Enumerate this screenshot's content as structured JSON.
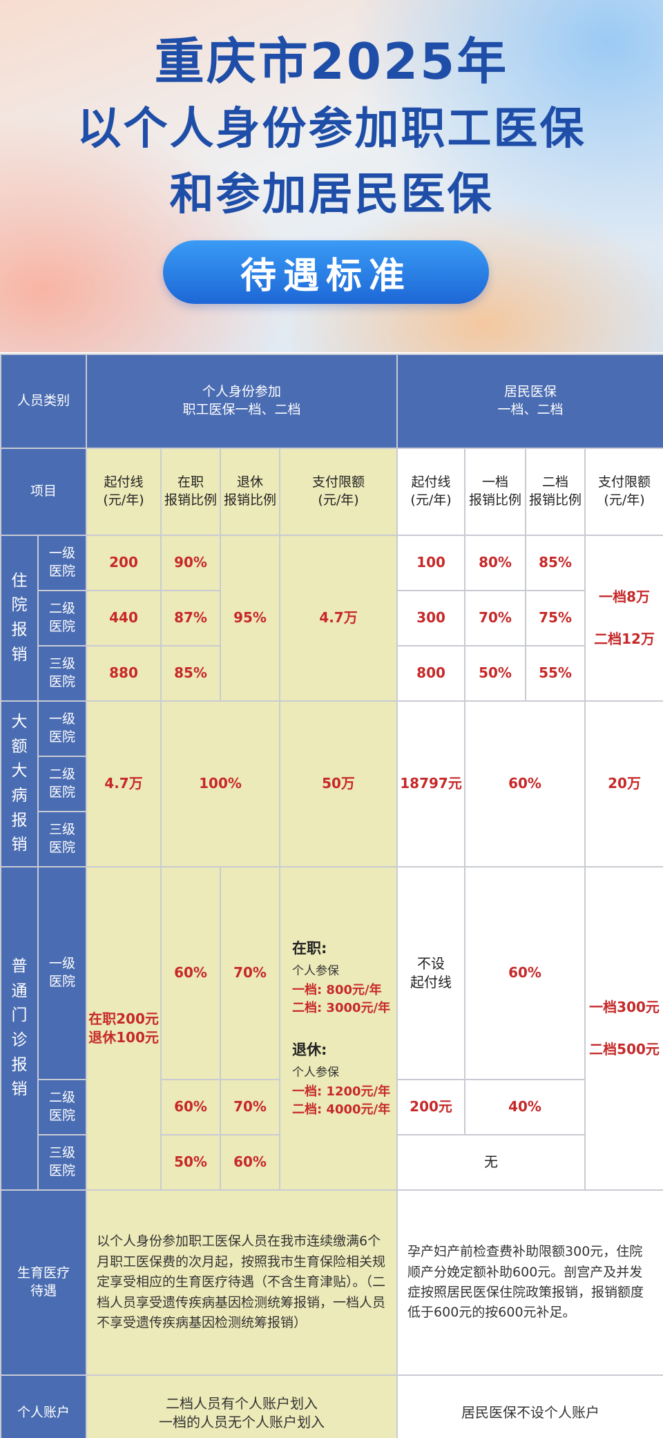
{
  "banner": {
    "title_line1": "重庆市2025年",
    "title_line2": "以个人身份参加职工医保",
    "title_line3": "和参加居民医保",
    "pill": "待遇标准"
  },
  "header": {
    "category": "人员类别",
    "employee_l1": "个人身份参加",
    "employee_l2": "职工医保一档、二档",
    "resident_l1": "居民医保",
    "resident_l2": "一档、二档",
    "item": "项目",
    "cols": {
      "e_threshold": [
        "起付线",
        "(元/年)"
      ],
      "e_working": [
        "在职",
        "报销比例"
      ],
      "e_retired": [
        "退休",
        "报销比例"
      ],
      "e_limit": [
        "支付限额",
        "(元/年)"
      ],
      "r_threshold": [
        "起付线",
        "(元/年)"
      ],
      "r_tier1": [
        "一档",
        "报销比例"
      ],
      "r_tier2": [
        "二档",
        "报销比例"
      ],
      "r_limit": [
        "支付限额",
        "(元/年)"
      ]
    }
  },
  "hospital": {
    "label": "住院报销",
    "levels": [
      {
        "name": [
          "一级",
          "医院"
        ],
        "e_threshold": "200",
        "e_working": "90%",
        "r_threshold": "100",
        "r_tier1": "80%",
        "r_tier2": "85%"
      },
      {
        "name": [
          "二级",
          "医院"
        ],
        "e_threshold": "440",
        "e_working": "87%",
        "r_threshold": "300",
        "r_tier1": "70%",
        "r_tier2": "75%"
      },
      {
        "name": [
          "三级",
          "医院"
        ],
        "e_threshold": "880",
        "e_working": "85%",
        "r_threshold": "800",
        "r_tier1": "50%",
        "r_tier2": "55%"
      }
    ],
    "e_retired": "95%",
    "e_limit": "4.7万",
    "r_limit_1": "一档8万",
    "r_limit_2": "二档12万"
  },
  "critical": {
    "label": "大额大病报销",
    "levels": [
      [
        "一级",
        "医院"
      ],
      [
        "二级",
        "医院"
      ],
      [
        "三级",
        "医院"
      ]
    ],
    "e_threshold": "4.7万",
    "e_ratio": "100%",
    "e_limit": "50万",
    "r_threshold": "18797元",
    "r_ratio": "60%",
    "r_limit": "20万"
  },
  "outpatient": {
    "label": "普通门诊报销",
    "levels": [
      [
        "一级",
        "医院"
      ],
      [
        "二级",
        "医院"
      ],
      [
        "三级",
        "医院"
      ]
    ],
    "e_threshold": [
      "在职200元",
      "退休100元"
    ],
    "l1_working": "60%",
    "l1_retired": "70%",
    "l2_working": "60%",
    "l2_retired": "70%",
    "l3_working": "50%",
    "l3_retired": "60%",
    "e_limit": {
      "working_title": "在职:",
      "working_sub": "个人参保",
      "working_t1": "一档: 800元/年",
      "working_t2": "二档: 3000元/年",
      "retired_title": "退休:",
      "retired_sub": "个人参保",
      "retired_t1": "一档: 1200元/年",
      "retired_t2": "二档: 4000元/年"
    },
    "r_l1_threshold": [
      "不设",
      "起付线"
    ],
    "r_l1_ratio": "60%",
    "r_l2_threshold": "200元",
    "r_l2_ratio": "40%",
    "r_l3": "无",
    "r_limit_1": "一档300元",
    "r_limit_2": "二档500元"
  },
  "maternity": {
    "label": [
      "生育医疗",
      "待遇"
    ],
    "employee_text": "以个人身份参加职工医保人员在我市连续缴满6个月职工医保费的次月起，按照我市生育保险相关规定享受相应的生育医疗待遇（不含生育津贴）。（二档人员享受遗传疾病基因检测统筹报销，一档人员不享受遗传疾病基因检测统筹报销）",
    "resident_text": "孕产妇产前检查费补助限额300元，住院顺产分娩定额补助600元。剖宫产及并发症按照居民医保住院政策报销，报销额度低于600元的按600元补足。"
  },
  "account": {
    "label": "个人账户",
    "employee_l1": "二档人员有个人账户划入",
    "employee_l2": "一档的人员无个人账户划入",
    "resident": "居民医保不设个人账户"
  }
}
